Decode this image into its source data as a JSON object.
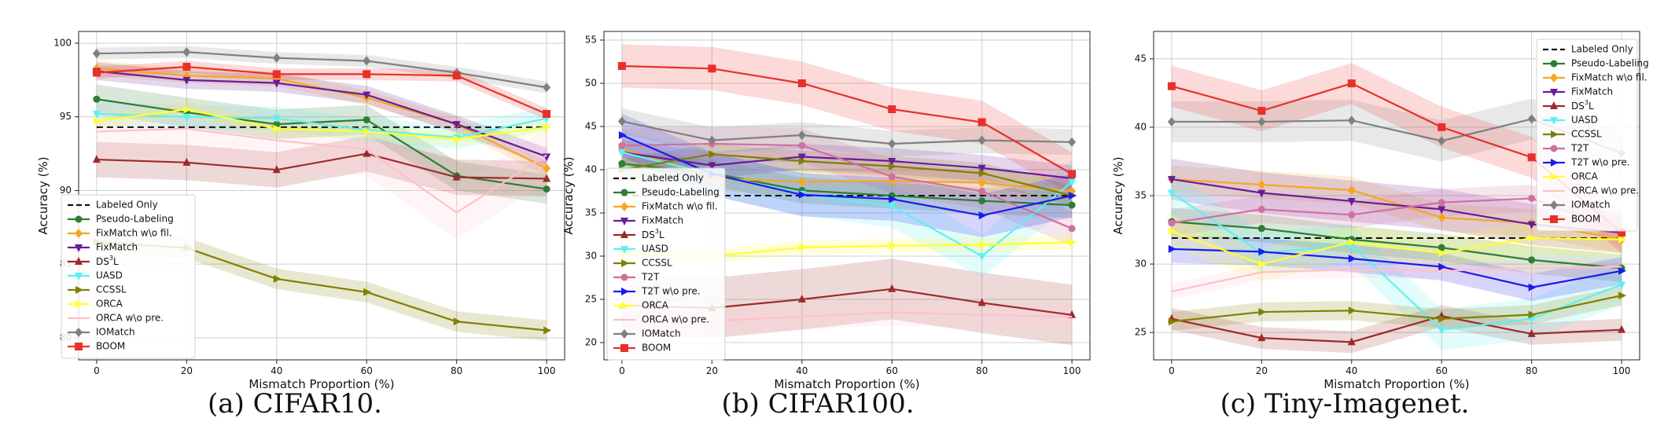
{
  "figure": {
    "captions": [
      "(a) CIFAR10.",
      "(b) CIFAR100.",
      "(c) Tiny-Imagenet."
    ],
    "xlabel": "Mismatch Proportion (%)",
    "ylabel": "Accuracy (%)"
  },
  "colors": {
    "Labeled Only": "#111111",
    "Pseudo-Labeling": "#2e7d32",
    "FixMatch w\\o fil.": "#f5a623",
    "FixMatch": "#6a1b9a",
    "DS3L": "#9e2a2b",
    "UASD": "#5ef0f0",
    "CCSSL": "#808000",
    "T2T": "#d070a0",
    "T2T w\\o pre.": "#1a1aee",
    "ORCA": "#ffff33",
    "ORCA w\\o pre.": "#ffc0cb",
    "IOMatch": "#808080",
    "BOOM": "#e8302a"
  },
  "chart_data": [
    {
      "type": "line",
      "caption": "(a) CIFAR10.",
      "xlabel": "Mismatch Proportion (%)",
      "ylabel": "Accuracy (%)",
      "x": [
        0,
        20,
        40,
        60,
        80,
        100
      ],
      "xlim": [
        -4,
        104
      ],
      "ylim": [
        78.5,
        100.8
      ],
      "xticks": [
        0,
        20,
        40,
        60,
        80,
        100
      ],
      "yticks": [
        80,
        85,
        90,
        95,
        100
      ],
      "grid": true,
      "legend": "lower-left",
      "series": [
        {
          "name": "Labeled Only",
          "values": [
            94.3,
            94.3,
            94.3,
            94.3,
            94.3,
            94.3
          ],
          "dashed": true
        },
        {
          "name": "Pseudo-Labeling",
          "values": [
            96.2,
            95.3,
            94.5,
            94.8,
            91.0,
            90.1
          ],
          "band": 1.0
        },
        {
          "name": "FixMatch w\\o fil.",
          "values": [
            98.3,
            97.8,
            97.6,
            96.3,
            94.5,
            91.5
          ],
          "band": 0.5
        },
        {
          "name": "FixMatch",
          "values": [
            98.1,
            97.5,
            97.3,
            96.5,
            94.5,
            92.3
          ],
          "band": 0.6
        },
        {
          "name": "DS3L",
          "values": [
            92.1,
            91.9,
            91.4,
            92.5,
            90.9,
            90.8
          ],
          "band": 1.2
        },
        {
          "name": "UASD",
          "values": [
            95.2,
            95.0,
            94.9,
            94.1,
            93.6,
            94.9
          ],
          "band": 0.8
        },
        {
          "name": "CCSSL",
          "values": [
            86.5,
            86.1,
            84.0,
            83.1,
            81.1,
            80.5
          ],
          "band": 0.7
        },
        {
          "name": "ORCA",
          "values": [
            94.7,
            95.5,
            94.2,
            94.0,
            93.5,
            94.3
          ],
          "band": 0.5
        },
        {
          "name": "ORCA w\\o pre.",
          "values": [
            94.0,
            94.2,
            93.4,
            92.8,
            88.5,
            92.4
          ],
          "band": 1.8
        },
        {
          "name": "IOMatch",
          "values": [
            99.3,
            99.4,
            99.0,
            98.8,
            98.0,
            97.0
          ],
          "band": 0.4
        },
        {
          "name": "BOOM",
          "values": [
            98.0,
            98.4,
            97.9,
            97.9,
            97.8,
            95.2
          ],
          "band": 0.4
        }
      ]
    },
    {
      "type": "line",
      "caption": "(b) CIFAR100.",
      "xlabel": "Mismatch Proportion (%)",
      "ylabel": "Accuracy (%)",
      "x": [
        0,
        20,
        40,
        60,
        80,
        100
      ],
      "xlim": [
        -4,
        104
      ],
      "ylim": [
        18,
        56
      ],
      "xticks": [
        0,
        20,
        40,
        60,
        80,
        100
      ],
      "yticks": [
        20,
        25,
        30,
        35,
        40,
        45,
        50,
        55
      ],
      "grid": true,
      "legend": "center-left",
      "series": [
        {
          "name": "Labeled Only",
          "values": [
            37.0,
            37.0,
            37.0,
            37.0,
            37.0,
            37.0
          ],
          "dashed": true
        },
        {
          "name": "Pseudo-Labeling",
          "values": [
            40.7,
            39.6,
            37.6,
            37.0,
            36.4,
            35.9
          ],
          "band": 1.5
        },
        {
          "name": "FixMatch w\\o fil.",
          "values": [
            42.5,
            39.0,
            38.6,
            38.7,
            38.5,
            37.5
          ],
          "band": 1.5
        },
        {
          "name": "FixMatch",
          "values": [
            42.0,
            40.5,
            41.5,
            41.0,
            40.2,
            39.0
          ],
          "band": 1.5
        },
        {
          "name": "DS3L",
          "values": [
            24.3,
            24.0,
            25.0,
            26.2,
            24.6,
            23.2
          ],
          "band": 3.5
        },
        {
          "name": "UASD",
          "values": [
            42.0,
            39.5,
            37.2,
            35.8,
            30.0,
            38.6
          ],
          "band": 2.5
        },
        {
          "name": "CCSSL",
          "values": [
            40.0,
            41.8,
            41.0,
            40.4,
            39.6,
            37.0
          ],
          "band": 1.2
        },
        {
          "name": "T2T",
          "values": [
            42.8,
            43.0,
            42.8,
            39.2,
            37.5,
            33.2
          ],
          "band": 2.0
        },
        {
          "name": "T2T w\\o pre.",
          "values": [
            44.0,
            39.5,
            37.1,
            36.6,
            34.7,
            37.0
          ],
          "band": 2.5
        },
        {
          "name": "ORCA",
          "values": [
            30.2,
            30.0,
            31.0,
            31.2,
            31.3,
            31.6
          ],
          "band": 0.8
        },
        {
          "name": "ORCA w\\o pre.",
          "values": [
            22.0,
            22.5,
            23.0,
            23.5,
            23.2,
            23.0
          ],
          "band": 1.5
        },
        {
          "name": "IOMatch",
          "values": [
            45.6,
            43.4,
            44.0,
            43.0,
            43.4,
            43.2
          ],
          "band": 1.5
        },
        {
          "name": "BOOM",
          "values": [
            52.0,
            51.7,
            50.0,
            47.0,
            45.5,
            39.5
          ],
          "band": 2.5
        }
      ]
    },
    {
      "type": "line",
      "caption": "(c) Tiny-Imagenet.",
      "xlabel": "Mismatch Proportion (%)",
      "ylabel": "Accuracy (%)",
      "x": [
        0,
        20,
        40,
        60,
        80,
        100
      ],
      "xlim": [
        -4,
        104
      ],
      "ylim": [
        23,
        47
      ],
      "xticks": [
        0,
        20,
        40,
        60,
        80,
        100
      ],
      "yticks": [
        25,
        30,
        35,
        40,
        45
      ],
      "grid": true,
      "legend": "upper-right",
      "series": [
        {
          "name": "Labeled Only",
          "values": [
            31.9,
            31.9,
            31.9,
            31.9,
            31.9,
            31.9
          ],
          "dashed": true
        },
        {
          "name": "Pseudo-Labeling",
          "values": [
            33.1,
            32.6,
            31.8,
            31.2,
            30.3,
            29.7
          ],
          "band": 1.0
        },
        {
          "name": "FixMatch w\\o fil.",
          "values": [
            36.2,
            35.8,
            35.4,
            33.4,
            33.0,
            31.8
          ],
          "band": 1.0
        },
        {
          "name": "FixMatch",
          "values": [
            36.2,
            35.2,
            34.6,
            34.0,
            32.9,
            32.3
          ],
          "band": 1.5
        },
        {
          "name": "DS3L",
          "values": [
            26.0,
            24.6,
            24.3,
            26.2,
            24.9,
            25.2
          ],
          "band": 0.8
        },
        {
          "name": "UASD",
          "values": [
            35.2,
            30.8,
            31.4,
            25.2,
            26.0,
            28.5
          ],
          "band": 1.5
        },
        {
          "name": "CCSSL",
          "values": [
            25.8,
            26.5,
            26.6,
            26.0,
            26.3,
            27.7
          ],
          "band": 0.7
        },
        {
          "name": "T2T",
          "values": [
            33.0,
            34.0,
            33.6,
            34.5,
            34.8,
            32.4
          ],
          "band": 1.0
        },
        {
          "name": "T2T w\\o pre.",
          "values": [
            31.1,
            30.9,
            30.4,
            29.8,
            28.3,
            29.5
          ],
          "band": 1.0
        },
        {
          "name": "ORCA",
          "values": [
            32.4,
            30.0,
            31.6,
            30.8,
            31.9,
            31.8
          ],
          "band": 1.2
        },
        {
          "name": "ORCA w\\o pre.",
          "values": [
            28.0,
            29.4,
            29.6,
            29.5,
            29.7,
            29.8
          ],
          "band": 0.6
        },
        {
          "name": "IOMatch",
          "values": [
            40.4,
            40.4,
            40.5,
            39.0,
            40.6,
            38.1
          ],
          "band": 1.5
        },
        {
          "name": "BOOM",
          "values": [
            43.0,
            41.2,
            43.2,
            40.0,
            37.8,
            32.3
          ],
          "band": 1.5
        }
      ]
    }
  ]
}
